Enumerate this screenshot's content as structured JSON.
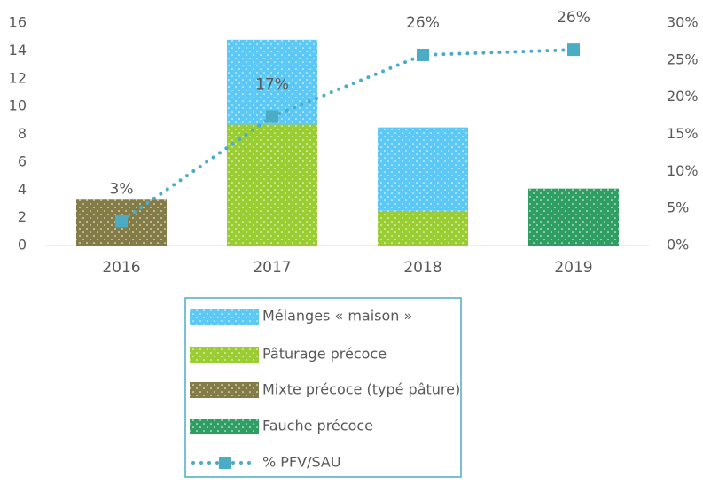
{
  "chart_data": {
    "type": "bar",
    "stacked": true,
    "categories": [
      "2016",
      "2017",
      "2018",
      "2019"
    ],
    "ylim": [
      0,
      16
    ],
    "yticks": [
      0,
      2,
      4,
      6,
      8,
      10,
      12,
      14,
      16
    ],
    "y2lim": [
      0,
      30
    ],
    "y2ticks": [
      {
        "value": 0,
        "label": "0%"
      },
      {
        "value": 5,
        "label": "5%"
      },
      {
        "value": 10,
        "label": "10%"
      },
      {
        "value": 15,
        "label": "15%"
      },
      {
        "value": 20,
        "label": "20%"
      },
      {
        "value": 25,
        "label": "25%"
      },
      {
        "value": 30,
        "label": "30%"
      }
    ],
    "legend": "bottom",
    "series": [
      {
        "name": "Mélanges « maison »",
        "color": "#5bc8f5",
        "values": [
          null,
          6.1,
          6.0,
          null
        ]
      },
      {
        "name": "Pâturage précoce",
        "color": "#9acd32",
        "values": [
          null,
          8.7,
          2.5,
          null
        ]
      },
      {
        "name": "Mixte précoce (typé pâture)",
        "color": "#847c47",
        "values": [
          3.3,
          null,
          null,
          null
        ]
      },
      {
        "name": "Fauche précoce",
        "color": "#2f9e63",
        "values": [
          null,
          null,
          null,
          4.1
        ]
      },
      {
        "name": "% PFV/SAU",
        "type": "line",
        "axis": "y2",
        "color": "#4bacc6",
        "values": [
          3.3,
          17.4,
          25.7,
          26.4
        ],
        "value_labels": [
          "3%",
          "17%",
          "26%",
          "26%"
        ]
      }
    ]
  }
}
